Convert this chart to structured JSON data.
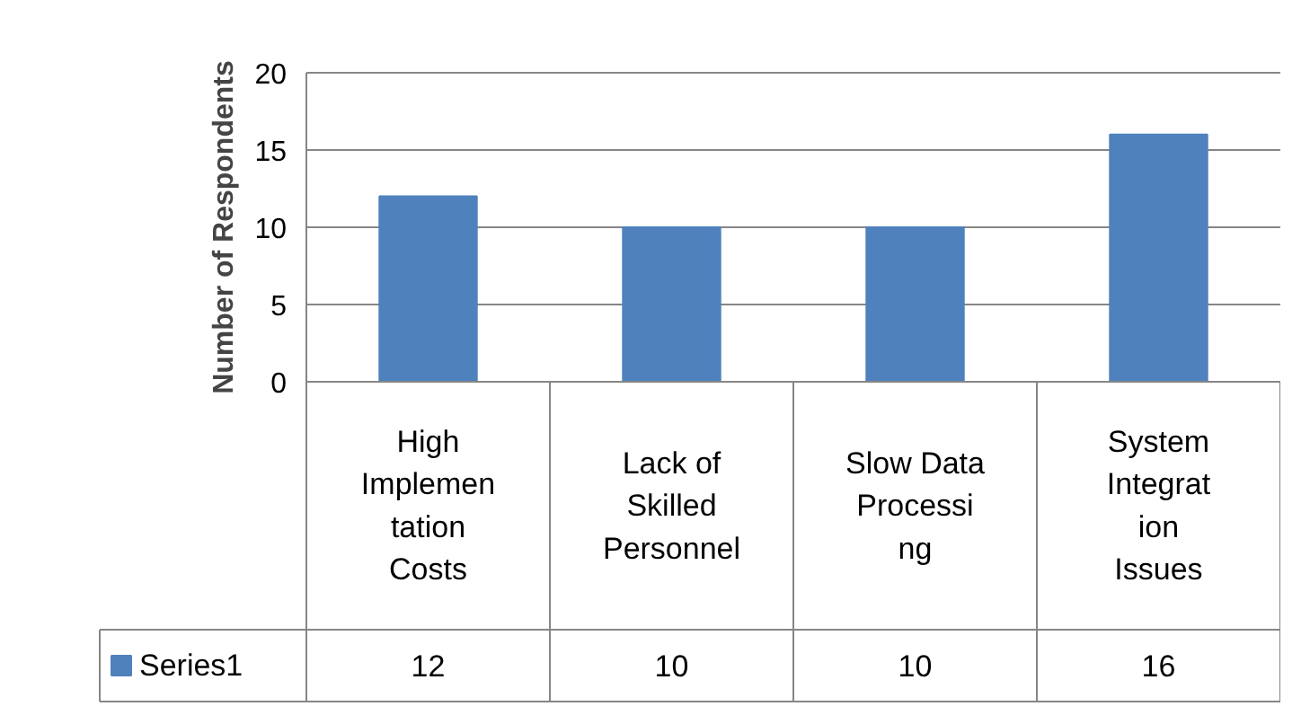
{
  "chart_data": {
    "type": "bar",
    "ylabel": "Number of Respondents",
    "categories": [
      "High Implementation Costs",
      "Lack of Skilled Personnel",
      "Slow Data Processing",
      "System Integration Issues"
    ],
    "series": [
      {
        "name": "Series1",
        "color": "#4f81bd",
        "values": [
          12,
          10,
          10,
          16
        ]
      }
    ],
    "ylim": [
      0,
      20
    ],
    "yticks": [
      0,
      5,
      10,
      15,
      20
    ],
    "grid": "y",
    "data_labels": true
  }
}
